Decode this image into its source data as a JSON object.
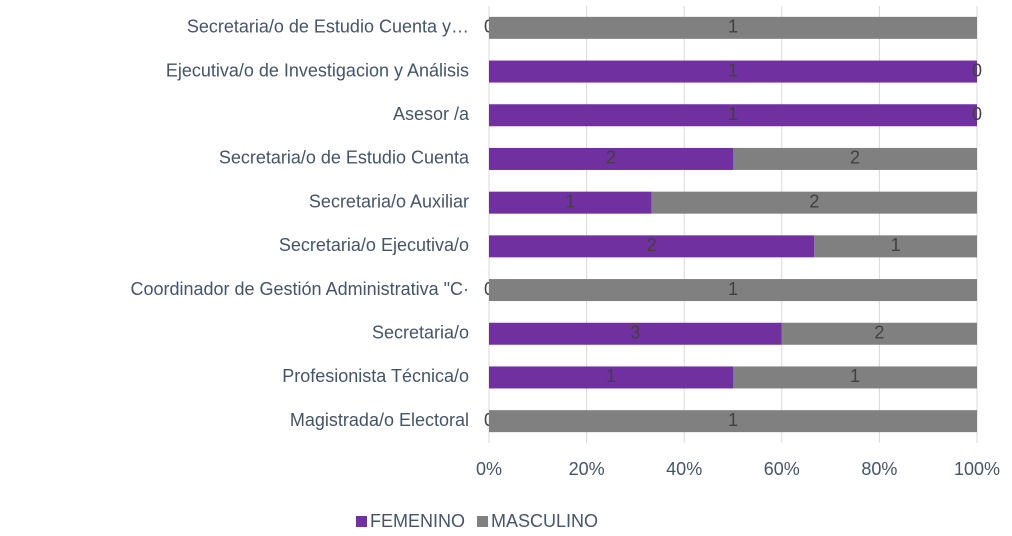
{
  "chart_data": {
    "type": "bar",
    "orientation": "horizontal",
    "stacking": "percent",
    "categories": [
      "Secretaria/o de Estudio Cuenta y…",
      "Ejecutiva/o de Investigacion y Análisis",
      "Asesor /a",
      "Secretaria/o de Estudio Cuenta",
      "Secretaria/o Auxiliar",
      "Secretaria/o Ejecutiva/o",
      "Coordinador de Gestión Administrativa \"C·",
      "Secretaria/o",
      "Profesionista Técnica/o",
      "Magistrada/o Electoral"
    ],
    "series": [
      {
        "name": "FEMENINO",
        "color": "#7030a0",
        "values": [
          0,
          1,
          1,
          2,
          1,
          2,
          0,
          3,
          1,
          0
        ]
      },
      {
        "name": "MASCULINO",
        "color": "#808080",
        "values": [
          1,
          0,
          0,
          2,
          2,
          1,
          1,
          2,
          1,
          1
        ]
      }
    ],
    "xlim": [
      0,
      100
    ],
    "xticks": [
      {
        "value": 0,
        "label": "0%"
      },
      {
        "value": 20,
        "label": "20%"
      },
      {
        "value": 40,
        "label": "40%"
      },
      {
        "value": 60,
        "label": "60%"
      },
      {
        "value": 80,
        "label": "80%"
      },
      {
        "value": 100,
        "label": "100%"
      }
    ],
    "grid": true,
    "legend": "bottom"
  }
}
